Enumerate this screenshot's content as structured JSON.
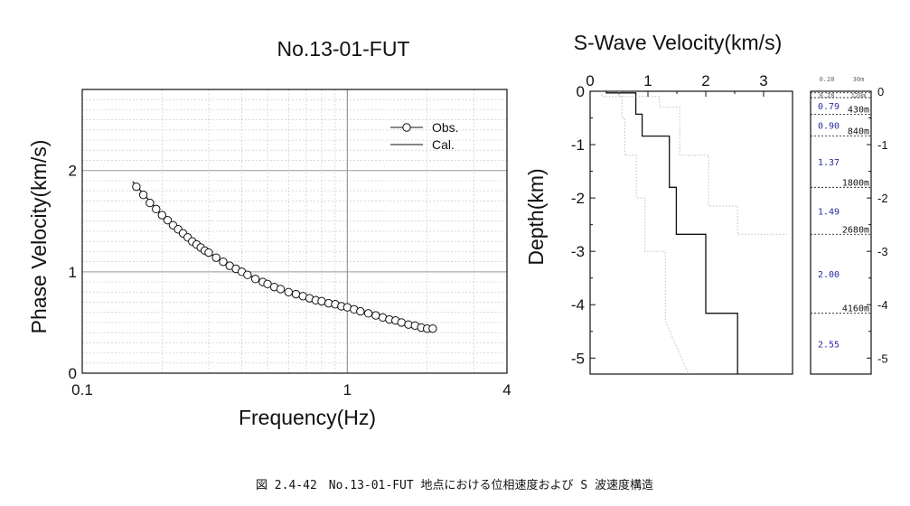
{
  "chart_data": [
    {
      "type": "scatter",
      "title": "No.13-01-FUT",
      "xlabel": "Frequency(Hz)",
      "ylabel": "Phase Velocity(km/s)",
      "xscale": "log",
      "xlim": [
        0.1,
        4
      ],
      "ylim": [
        0,
        2.8
      ],
      "x_ticks": [
        "0.1",
        "1",
        "4"
      ],
      "y_ticks": [
        "0",
        "1",
        "2"
      ],
      "grid": true,
      "legend_position": "top-right",
      "series": [
        {
          "name": "Obs.",
          "marker": "circle",
          "x": [
            0.16,
            0.17,
            0.18,
            0.19,
            0.2,
            0.21,
            0.22,
            0.23,
            0.24,
            0.25,
            0.26,
            0.27,
            0.28,
            0.29,
            0.3,
            0.32,
            0.34,
            0.36,
            0.38,
            0.4,
            0.42,
            0.45,
            0.48,
            0.5,
            0.53,
            0.56,
            0.6,
            0.64,
            0.68,
            0.72,
            0.76,
            0.8,
            0.85,
            0.9,
            0.95,
            1.0,
            1.06,
            1.12,
            1.2,
            1.28,
            1.36,
            1.44,
            1.52,
            1.6,
            1.7,
            1.8,
            1.9,
            2.0,
            2.1
          ],
          "y": [
            1.84,
            1.76,
            1.68,
            1.62,
            1.56,
            1.51,
            1.46,
            1.42,
            1.38,
            1.34,
            1.3,
            1.27,
            1.24,
            1.21,
            1.19,
            1.14,
            1.1,
            1.06,
            1.03,
            1.0,
            0.97,
            0.93,
            0.9,
            0.88,
            0.85,
            0.83,
            0.8,
            0.78,
            0.76,
            0.74,
            0.72,
            0.71,
            0.69,
            0.68,
            0.66,
            0.65,
            0.63,
            0.61,
            0.59,
            0.57,
            0.55,
            0.53,
            0.52,
            0.5,
            0.48,
            0.47,
            0.45,
            0.44,
            0.44
          ]
        },
        {
          "name": "Cal.",
          "marker": "line",
          "x": [
            0.155,
            0.2,
            0.25,
            0.3,
            0.35,
            0.4,
            0.5,
            0.6,
            0.7,
            0.8,
            0.9,
            1.0,
            1.2,
            1.4,
            1.6,
            1.8,
            2.0,
            2.15
          ],
          "y": [
            1.89,
            1.56,
            1.34,
            1.19,
            1.08,
            1.0,
            0.88,
            0.8,
            0.745,
            0.71,
            0.68,
            0.65,
            0.59,
            0.54,
            0.5,
            0.47,
            0.445,
            0.44
          ]
        }
      ]
    },
    {
      "type": "line",
      "title": "S-Wave Velocity(km/s)",
      "xlabel": "",
      "ylabel": "Depth(km)",
      "xlim": [
        0,
        3.5
      ],
      "ylim": [
        -5.3,
        0
      ],
      "x_ticks": [
        "0",
        "1",
        "2",
        "3"
      ],
      "y_ticks": [
        "0",
        "-1",
        "-2",
        "-3",
        "-4",
        "-5"
      ],
      "grid": false,
      "series": [
        {
          "name": "",
          "style": "solid",
          "x": [
            0.28,
            0.28,
            0.79,
            0.79,
            0.9,
            0.9,
            1.37,
            1.37,
            1.49,
            1.49,
            2.0,
            2.0,
            2.55,
            2.55
          ],
          "y": [
            0,
            -0.03,
            -0.03,
            -0.43,
            -0.43,
            -0.84,
            -0.84,
            -1.8,
            -1.8,
            -2.68,
            -2.68,
            -4.16,
            -4.16,
            -5.3
          ]
        },
        {
          "name": "",
          "style": "dotted",
          "x": [
            0.2,
            0.2,
            0.55,
            0.55,
            0.6,
            0.6,
            0.8,
            0.8,
            0.95,
            0.95,
            1.3,
            1.3,
            1.7
          ],
          "y": [
            0,
            -0.1,
            -0.1,
            -0.5,
            -0.5,
            -1.2,
            -1.2,
            -2.0,
            -2.0,
            -3.0,
            -3.0,
            -4.3,
            -5.3
          ]
        },
        {
          "name": "",
          "style": "dotted",
          "x": [
            0.5,
            0.5,
            1.2,
            1.2,
            1.55,
            1.55,
            2.05,
            2.05,
            2.55,
            2.55,
            3.4
          ],
          "y": [
            0,
            -0.1,
            -0.1,
            -0.3,
            -0.3,
            -1.2,
            -1.2,
            -2.15,
            -2.15,
            -2.68,
            -2.68
          ]
        }
      ]
    },
    {
      "type": "table",
      "title": "",
      "ylim": [
        -5.3,
        0
      ],
      "y_ticks": [
        "0",
        "-1",
        "-2",
        "-3",
        "-4",
        "-5"
      ],
      "top_labels": [
        "0.28",
        "30m",
        "0.28",
        "120m"
      ],
      "layers": [
        {
          "velocity": "0.79",
          "bottom_label": "430m",
          "bottom_km": -0.43
        },
        {
          "velocity": "0.90",
          "bottom_label": "840m",
          "bottom_km": -0.84
        },
        {
          "velocity": "1.37",
          "bottom_label": "1800m",
          "bottom_km": -1.8
        },
        {
          "velocity": "1.49",
          "bottom_label": "2680m",
          "bottom_km": -2.68
        },
        {
          "velocity": "2.00",
          "bottom_label": "4160m",
          "bottom_km": -4.16
        },
        {
          "velocity": "2.55",
          "bottom_label": "",
          "bottom_km": -5.3
        }
      ]
    }
  ],
  "caption": "図 2.4-42　No.13-01-FUT 地点における位相速度および S 波速度構造"
}
